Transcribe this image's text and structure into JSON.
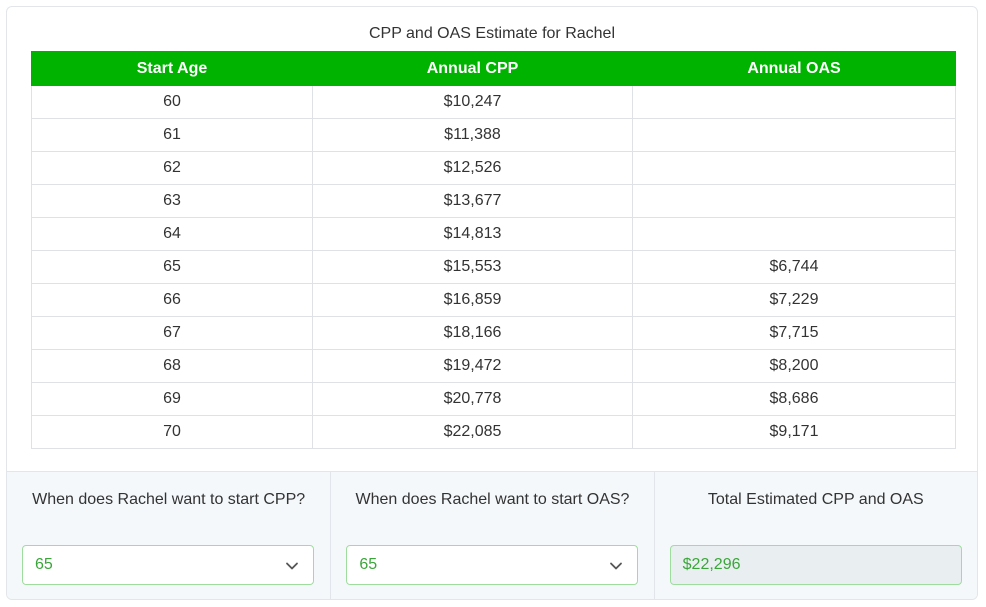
{
  "table": {
    "title": "CPP and OAS Estimate for Rachel",
    "headers": [
      "Start Age",
      "Annual CPP",
      "Annual OAS"
    ],
    "rows": [
      [
        "60",
        "$10,247",
        ""
      ],
      [
        "61",
        "$11,388",
        ""
      ],
      [
        "62",
        "$12,526",
        ""
      ],
      [
        "63",
        "$13,677",
        ""
      ],
      [
        "64",
        "$14,813",
        ""
      ],
      [
        "65",
        "$15,553",
        "$6,744"
      ],
      [
        "66",
        "$16,859",
        "$7,229"
      ],
      [
        "67",
        "$18,166",
        "$7,715"
      ],
      [
        "68",
        "$19,472",
        "$8,200"
      ],
      [
        "69",
        "$20,778",
        "$8,686"
      ],
      [
        "70",
        "$22,085",
        "$9,171"
      ]
    ]
  },
  "controls": {
    "cpp_label": "When does Rachel want to start CPP?",
    "cpp_value": "65",
    "oas_label": "When does Rachel want to start OAS?",
    "oas_value": "65",
    "total_label": "Total Estimated CPP and OAS",
    "total_value": "$22,296"
  },
  "icons": {
    "cpp_select": "chevron-down-icon",
    "oas_select": "chevron-down-icon"
  },
  "colors": {
    "header_bg": "#00b300",
    "header_text": "#ffffff",
    "value_text": "#3aa63a",
    "input_border": "#9fdd9f",
    "footer_bg": "#f4f8fb"
  }
}
